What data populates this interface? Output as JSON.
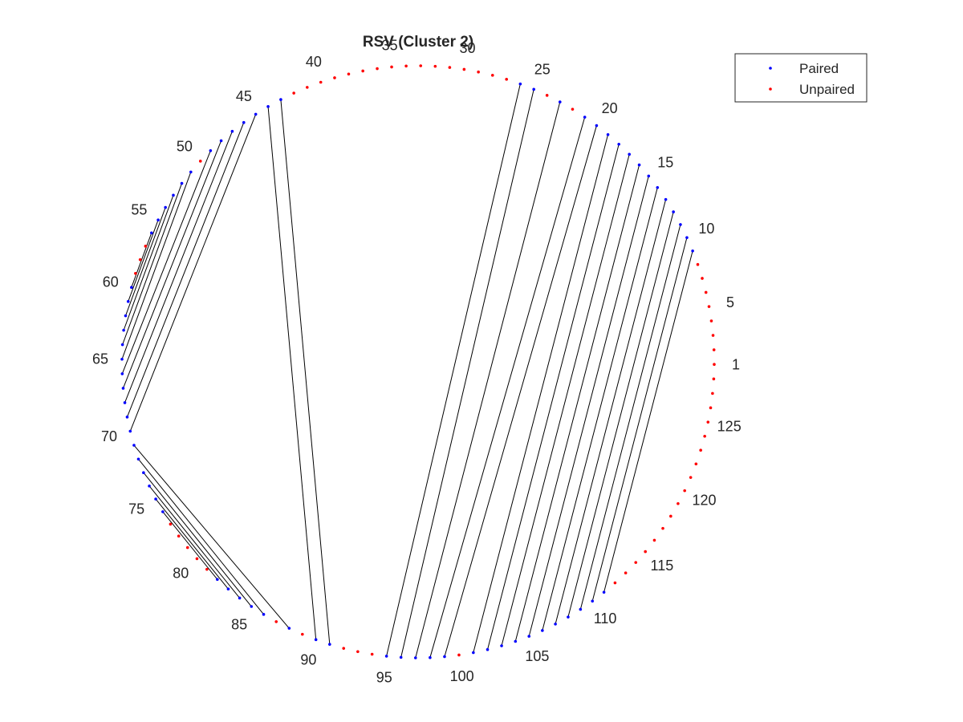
{
  "chart_data": {
    "type": "arc-diagram-circular",
    "title": "RSV (Cluster 2)",
    "n_positions": 128,
    "tick_labels": [
      "1",
      "5",
      "10",
      "15",
      "20",
      "25",
      "30",
      "35",
      "40",
      "45",
      "50",
      "55",
      "60",
      "65",
      "70",
      "75",
      "80",
      "85",
      "90",
      "95",
      "100",
      "105",
      "110",
      "115",
      "120",
      "125"
    ],
    "legend": {
      "placement": "top-right",
      "entries": [
        {
          "label": "Paired",
          "color": "#0000ff"
        },
        {
          "label": "Unpaired",
          "color": "#ff0000"
        }
      ]
    },
    "pairs": [
      [
        9,
        111
      ],
      [
        10,
        110
      ],
      [
        11,
        109
      ],
      [
        12,
        108
      ],
      [
        13,
        107
      ],
      [
        14,
        106
      ],
      [
        15,
        105
      ],
      [
        16,
        104
      ],
      [
        17,
        103
      ],
      [
        18,
        102
      ],
      [
        19,
        101
      ],
      [
        20,
        99
      ],
      [
        21,
        98
      ],
      [
        23,
        97
      ],
      [
        25,
        96
      ],
      [
        26,
        95
      ],
      [
        43,
        91
      ],
      [
        44,
        90
      ],
      [
        45,
        70
      ],
      [
        46,
        69
      ],
      [
        47,
        68
      ],
      [
        48,
        67
      ],
      [
        49,
        66
      ],
      [
        51,
        65
      ],
      [
        52,
        64
      ],
      [
        53,
        63
      ],
      [
        54,
        62
      ],
      [
        55,
        61
      ],
      [
        56,
        60
      ],
      [
        71,
        88
      ],
      [
        72,
        86
      ],
      [
        73,
        85
      ],
      [
        74,
        84
      ],
      [
        75,
        83
      ],
      [
        76,
        82
      ]
    ],
    "colors": {
      "paired": "#0000ff",
      "unpaired": "#ff0000",
      "line": "#000000",
      "text": "#262626",
      "legend_border": "#262626"
    }
  }
}
